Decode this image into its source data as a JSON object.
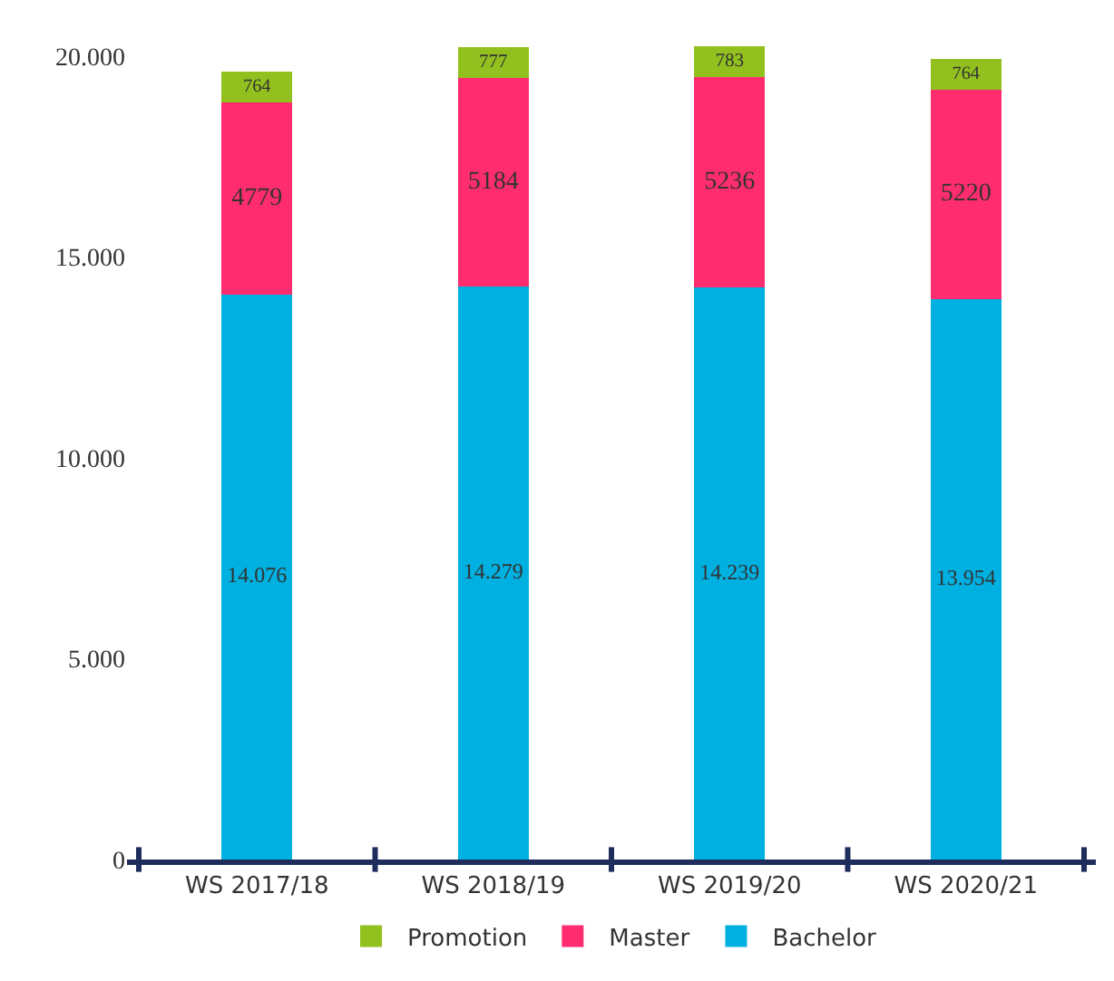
{
  "chart_data": {
    "type": "bar",
    "stacked": true,
    "categories": [
      "WS 2017/18",
      "WS 2018/19",
      "WS 2019/20",
      "WS 2020/21"
    ],
    "series": [
      {
        "name": "Bachelor",
        "color": "#00b0e0",
        "values": [
          14076,
          14279,
          14239,
          13954
        ],
        "value_labels": [
          "14.076",
          "14.279",
          "14.239",
          "13.954"
        ]
      },
      {
        "name": "Master",
        "color": "#ff2d6f",
        "values": [
          4779,
          5184,
          5236,
          5220
        ],
        "value_labels": [
          "4779",
          "5184",
          "5236",
          "5220"
        ]
      },
      {
        "name": "Promotion",
        "color": "#92c01f",
        "values": [
          764,
          777,
          783,
          764
        ],
        "value_labels": [
          "764",
          "777",
          "783",
          "764"
        ]
      }
    ],
    "ylim": [
      0,
      20500
    ],
    "yticks": [
      0,
      {
        "value": 5000,
        "label": "5.000"
      },
      {
        "value": 10000,
        "label": "10.000"
      },
      {
        "value": 15000,
        "label": "15.000"
      },
      {
        "value": 20000,
        "label": "20.000"
      }
    ],
    "grid": false,
    "legend": "bottom"
  }
}
